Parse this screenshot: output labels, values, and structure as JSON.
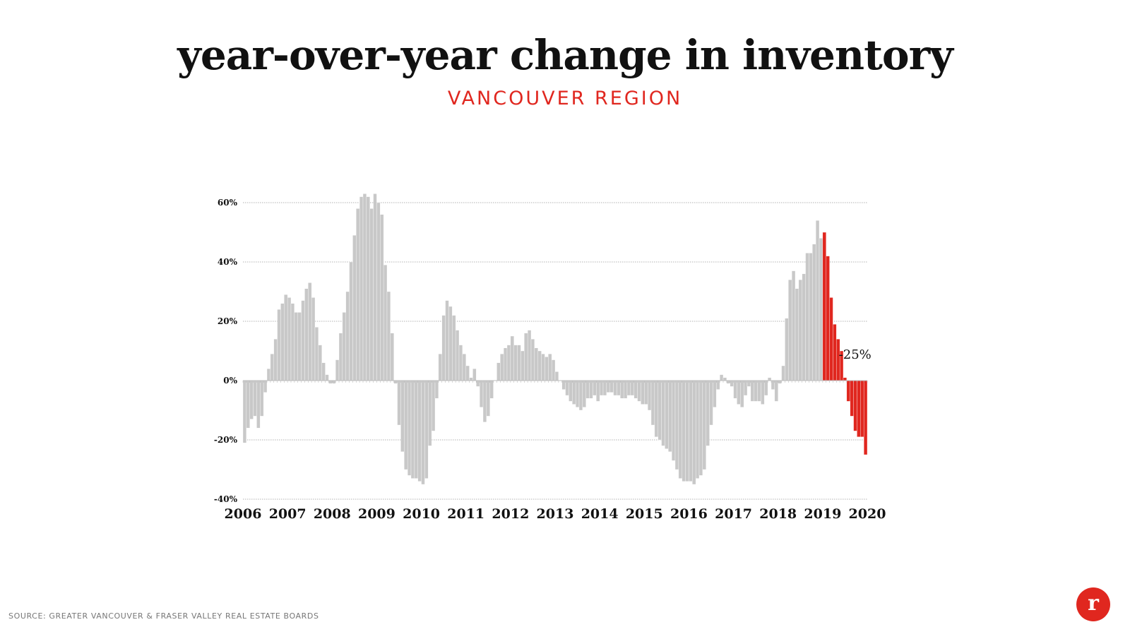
{
  "title": "year-over-year change in inventory",
  "subtitle": "VANCOUVER REGION",
  "source": "SOURCE: GREATER VANCOUVER & FRASER VALLEY REAL ESTATE BOARDS",
  "logo_text": "r",
  "colors": {
    "bar": "#c8c8c8",
    "highlight": "#e0271f",
    "subtitle": "#e0271f"
  },
  "chart_data": {
    "type": "bar",
    "title": "year-over-year change in inventory",
    "subtitle": "VANCOUVER REGION",
    "xlabel": "",
    "ylabel": "",
    "ylim": [
      -40,
      60
    ],
    "yticks": [
      -40,
      -20,
      0,
      20,
      40,
      60
    ],
    "ytick_labels": [
      "-40%",
      "-20%",
      "0%",
      "20%",
      "40%",
      "60%"
    ],
    "x_tick_labels": [
      "2006",
      "2007",
      "2008",
      "2009",
      "2010",
      "2011",
      "2012",
      "2013",
      "2014",
      "2015",
      "2016",
      "2017",
      "2018",
      "2019",
      "2020"
    ],
    "grid": true,
    "start": "2006-01",
    "frequency": "monthly",
    "highlight_from_index": 169,
    "annotation": {
      "text": "-25%",
      "index": 173
    },
    "values": [
      -21,
      -16,
      -13,
      -12,
      -16,
      -12,
      -4,
      4,
      9,
      14,
      24,
      26,
      29,
      28,
      26,
      23,
      23,
      27,
      31,
      33,
      28,
      18,
      12,
      6,
      2,
      -1,
      -1,
      7,
      16,
      23,
      30,
      40,
      49,
      58,
      62,
      63,
      62,
      58,
      63,
      60,
      56,
      39,
      30,
      16,
      -1,
      -15,
      -24,
      -30,
      -32,
      -33,
      -33,
      -34,
      -35,
      -33,
      -22,
      -17,
      -6,
      9,
      22,
      27,
      25,
      22,
      17,
      12,
      9,
      5,
      1,
      4,
      -2,
      -9,
      -14,
      -12,
      -6,
      0,
      6,
      9,
      11,
      12,
      15,
      12,
      12,
      10,
      16,
      17,
      14,
      11,
      10,
      9,
      8,
      9,
      7,
      3,
      0,
      -3,
      -5,
      -7,
      -8,
      -9,
      -10,
      -9,
      -6,
      -6,
      -5,
      -7,
      -5,
      -5,
      -4,
      -4,
      -5,
      -5,
      -6,
      -6,
      -5,
      -5,
      -6,
      -7,
      -8,
      -8,
      -10,
      -15,
      -19,
      -20,
      -22,
      -23,
      -24,
      -27,
      -30,
      -33,
      -34,
      -34,
      -34,
      -35,
      -33,
      -32,
      -30,
      -22,
      -15,
      -9,
      -3,
      2,
      1,
      -1,
      -2,
      -6,
      -8,
      -9,
      -5,
      -2,
      -7,
      -7,
      -7,
      -8,
      -5,
      1,
      -3,
      -7,
      -1,
      5,
      21,
      34,
      37,
      31,
      34,
      36,
      43,
      43,
      46,
      54,
      48,
      50,
      42,
      28,
      19,
      14,
      10,
      1,
      -7,
      -12,
      -17,
      -19,
      -19,
      -25
    ]
  }
}
